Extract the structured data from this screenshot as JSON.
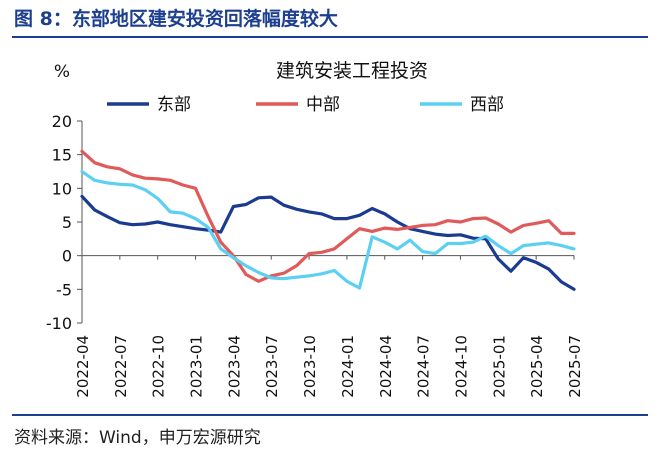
{
  "figure_title": "图 8：东部地区建安投资回落幅度较大",
  "source": "资料来源：Wind，申万宏源研究",
  "chart_data": {
    "type": "line",
    "title": "建筑安装工程投资",
    "ylabel": "%",
    "xlabel": "",
    "ylim": [
      -10,
      20
    ],
    "yticks": [
      20,
      15,
      10,
      5,
      0,
      -5,
      -10
    ],
    "grid": false,
    "legend_placement": "top",
    "x": [
      "2022-04",
      "2022-05",
      "2022-06",
      "2022-07",
      "2022-08",
      "2022-09",
      "2022-10",
      "2022-11",
      "2022-12",
      "2023-01",
      "2023-02",
      "2023-03",
      "2023-04",
      "2023-05",
      "2023-06",
      "2023-07",
      "2023-08",
      "2023-09",
      "2023-10",
      "2023-11",
      "2023-12",
      "2024-01",
      "2024-02",
      "2024-03",
      "2024-04",
      "2024-05",
      "2024-06",
      "2024-07",
      "2024-08",
      "2024-09",
      "2024-10",
      "2024-11",
      "2024-12",
      "2025-01",
      "2025-02",
      "2025-03",
      "2025-04",
      "2025-05",
      "2025-06",
      "2025-07"
    ],
    "x_tick_labels": [
      "2022-04",
      "2022-07",
      "2022-10",
      "2023-01",
      "2023-04",
      "2023-07",
      "2023-10",
      "2024-01",
      "2024-04",
      "2024-07",
      "2024-10",
      "2025-01",
      "2025-04",
      "2025-07"
    ],
    "series": [
      {
        "name": "东部",
        "color": "#1b3b8f",
        "values": [
          8.8,
          6.8,
          5.8,
          4.9,
          4.6,
          4.7,
          5.0,
          4.6,
          4.3,
          4.0,
          3.8,
          3.5,
          7.3,
          7.6,
          8.6,
          8.7,
          7.5,
          6.9,
          6.5,
          6.2,
          5.5,
          5.5,
          6.0,
          7.0,
          6.2,
          5.0,
          4.0,
          3.6,
          3.2,
          3.0,
          3.1,
          2.6,
          2.5,
          -0.5,
          -2.3,
          -0.3,
          -1.0,
          -2.0,
          -3.9,
          -5.0
        ]
      },
      {
        "name": "中部",
        "color": "#e05a5a",
        "values": [
          15.5,
          13.8,
          13.2,
          12.9,
          12.0,
          11.5,
          11.4,
          11.2,
          10.5,
          10.0,
          5.8,
          2.0,
          0.0,
          -2.8,
          -3.8,
          -3.0,
          -2.6,
          -1.5,
          0.3,
          0.5,
          1.0,
          2.5,
          4.0,
          3.6,
          4.1,
          3.9,
          4.2,
          4.5,
          4.6,
          5.2,
          5.0,
          5.5,
          5.6,
          4.7,
          3.5,
          4.5,
          4.8,
          5.2,
          3.3,
          3.3
        ]
      },
      {
        "name": "西部",
        "color": "#5bd0f2",
        "values": [
          12.5,
          11.2,
          10.8,
          10.6,
          10.5,
          9.8,
          8.5,
          6.5,
          6.3,
          5.5,
          4.2,
          1.0,
          -0.3,
          -1.5,
          -2.5,
          -3.3,
          -3.4,
          -3.2,
          -3.0,
          -2.7,
          -2.2,
          -3.8,
          -4.8,
          2.8,
          2.0,
          1.0,
          2.3,
          0.6,
          0.3,
          1.8,
          1.8,
          2.0,
          2.9,
          1.5,
          0.3,
          1.5,
          1.7,
          1.9,
          1.5,
          1.0
        ]
      }
    ]
  }
}
